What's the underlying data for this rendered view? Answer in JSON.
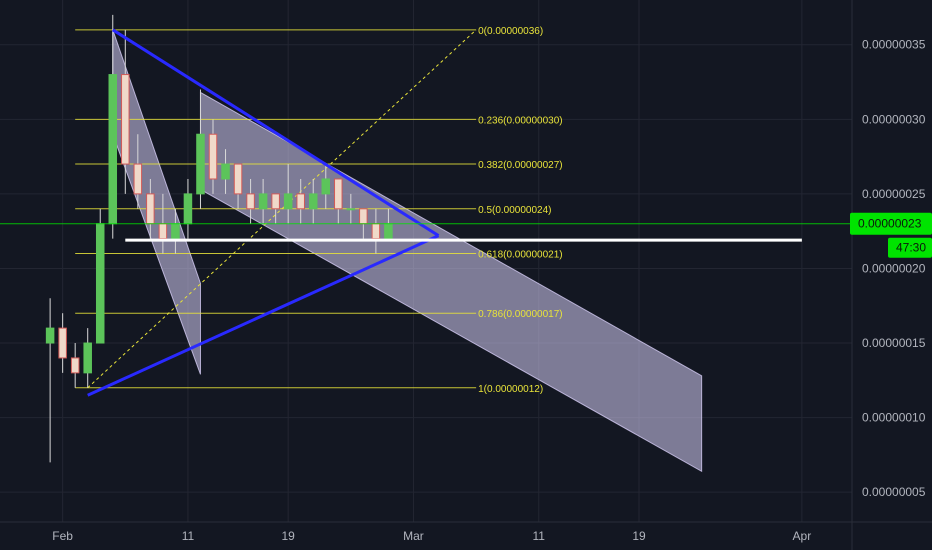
{
  "chart_data": {
    "type": "candlestick",
    "title": "",
    "xlabel": "",
    "ylabel": "",
    "x_range": [
      "2018-01-27",
      "2018-04-05"
    ],
    "ylim": [
      3e-08,
      3.8e-07
    ],
    "grid": true,
    "x_ticks": [
      {
        "date": "2018-02-01",
        "label": "Feb"
      },
      {
        "date": "2018-02-11",
        "label": "11"
      },
      {
        "date": "2018-02-19",
        "label": "19"
      },
      {
        "date": "2018-03-01",
        "label": "Mar"
      },
      {
        "date": "2018-03-11",
        "label": "11"
      },
      {
        "date": "2018-03-19",
        "label": "19"
      },
      {
        "date": "2018-04-01",
        "label": "Apr"
      }
    ],
    "y_ticks": [
      {
        "value": 3.5e-07,
        "label": "0.00000035"
      },
      {
        "value": 3e-07,
        "label": "0.00000030"
      },
      {
        "value": 2.5e-07,
        "label": "0.00000025"
      },
      {
        "value": 2e-07,
        "label": "0.00000020"
      },
      {
        "value": 1.5e-07,
        "label": "0.00000015"
      },
      {
        "value": 1e-07,
        "label": "0.00000010"
      },
      {
        "value": 5e-08,
        "label": "0.00000005"
      }
    ],
    "current_price": {
      "value": 2.3e-07,
      "label": "0.00000023",
      "countdown": "47:30",
      "color": "#00e400"
    },
    "fibonacci": {
      "start_date": "2018-02-02",
      "end_date": "2018-03-06",
      "color": "#e8e33a",
      "levels": [
        {
          "ratio": "0",
          "value": 3.6e-07,
          "label": "0(0.00000036)"
        },
        {
          "ratio": "0.236",
          "value": 3e-07,
          "label": "0.236(0.00000030)"
        },
        {
          "ratio": "0.382",
          "value": 2.7e-07,
          "label": "0.382(0.00000027)"
        },
        {
          "ratio": "0.5",
          "value": 2.4e-07,
          "label": "0.5(0.00000024)"
        },
        {
          "ratio": "0.618",
          "value": 2.1e-07,
          "label": "0.618(0.00000021)"
        },
        {
          "ratio": "0.786",
          "value": 1.7e-07,
          "label": "0.786(0.00000017)"
        },
        {
          "ratio": "1",
          "value": 1.2e-07,
          "label": "1(0.00000012)"
        }
      ],
      "diagonal": {
        "from_date": "2018-02-03",
        "from_value": 1.2e-07,
        "to_date": "2018-03-06",
        "to_value": 3.6e-07
      }
    },
    "triangle": {
      "color": "#2929ff",
      "upper": {
        "from_date": "2018-02-05",
        "from_value": 3.6e-07,
        "to_date": "2018-03-03",
        "to_value": 2.22e-07
      },
      "lower": {
        "from_date": "2018-02-03",
        "from_value": 1.15e-07,
        "to_date": "2018-03-03",
        "to_value": 2.22e-07
      }
    },
    "support_line": {
      "from_date": "2018-02-06",
      "to_date": "2018-04-01",
      "value": 2.19e-07,
      "color": "#ffffff"
    },
    "channels": [
      {
        "color": "#d6cdf5",
        "points": [
          [
            "2018-02-05",
            3.6e-07
          ],
          [
            "2018-02-12",
            1.9e-07
          ],
          [
            "2018-02-12",
            1.29e-07
          ],
          [
            "2018-02-05",
            2.9e-07
          ]
        ]
      },
      {
        "color": "#d6cdf5",
        "points": [
          [
            "2018-02-12",
            3.18e-07
          ],
          [
            "2018-03-24",
            1.28e-07
          ],
          [
            "2018-03-24",
            6.4e-08
          ],
          [
            "2018-02-12",
            2.53e-07
          ]
        ]
      }
    ],
    "candles": [
      {
        "date": "2018-01-31",
        "open": 1.5e-07,
        "high": 1.8e-07,
        "low": 7e-08,
        "close": 1.6e-07
      },
      {
        "date": "2018-02-01",
        "open": 1.6e-07,
        "high": 1.7e-07,
        "low": 1.3e-07,
        "close": 1.4e-07
      },
      {
        "date": "2018-02-02",
        "open": 1.4e-07,
        "high": 1.5e-07,
        "low": 1.2e-07,
        "close": 1.3e-07
      },
      {
        "date": "2018-02-03",
        "open": 1.3e-07,
        "high": 1.6e-07,
        "low": 1.2e-07,
        "close": 1.5e-07
      },
      {
        "date": "2018-02-04",
        "open": 1.5e-07,
        "high": 2.4e-07,
        "low": 1.5e-07,
        "close": 2.3e-07
      },
      {
        "date": "2018-02-05",
        "open": 2.3e-07,
        "high": 3.7e-07,
        "low": 2.2e-07,
        "close": 3.3e-07
      },
      {
        "date": "2018-02-06",
        "open": 3.3e-07,
        "high": 3.6e-07,
        "low": 2.5e-07,
        "close": 2.7e-07
      },
      {
        "date": "2018-02-07",
        "open": 2.7e-07,
        "high": 2.9e-07,
        "low": 2.4e-07,
        "close": 2.5e-07
      },
      {
        "date": "2018-02-08",
        "open": 2.5e-07,
        "high": 2.6e-07,
        "low": 2.2e-07,
        "close": 2.3e-07
      },
      {
        "date": "2018-02-09",
        "open": 2.3e-07,
        "high": 2.5e-07,
        "low": 2.1e-07,
        "close": 2.2e-07
      },
      {
        "date": "2018-02-10",
        "open": 2.2e-07,
        "high": 2.4e-07,
        "low": 2.1e-07,
        "close": 2.3e-07
      },
      {
        "date": "2018-02-11",
        "open": 2.3e-07,
        "high": 2.6e-07,
        "low": 2.2e-07,
        "close": 2.5e-07
      },
      {
        "date": "2018-02-12",
        "open": 2.5e-07,
        "high": 3.2e-07,
        "low": 2.4e-07,
        "close": 2.9e-07
      },
      {
        "date": "2018-02-13",
        "open": 2.9e-07,
        "high": 3e-07,
        "low": 2.5e-07,
        "close": 2.6e-07
      },
      {
        "date": "2018-02-14",
        "open": 2.6e-07,
        "high": 2.8e-07,
        "low": 2.5e-07,
        "close": 2.7e-07
      },
      {
        "date": "2018-02-15",
        "open": 2.7e-07,
        "high": 2.7e-07,
        "low": 2.4e-07,
        "close": 2.5e-07
      },
      {
        "date": "2018-02-16",
        "open": 2.5e-07,
        "high": 2.6e-07,
        "low": 2.3e-07,
        "close": 2.4e-07
      },
      {
        "date": "2018-02-17",
        "open": 2.4e-07,
        "high": 2.6e-07,
        "low": 2.3e-07,
        "close": 2.5e-07
      },
      {
        "date": "2018-02-18",
        "open": 2.5e-07,
        "high": 2.5e-07,
        "low": 2.3e-07,
        "close": 2.4e-07
      },
      {
        "date": "2018-02-19",
        "open": 2.4e-07,
        "high": 2.7e-07,
        "low": 2.3e-07,
        "close": 2.5e-07
      },
      {
        "date": "2018-02-20",
        "open": 2.5e-07,
        "high": 2.6e-07,
        "low": 2.3e-07,
        "close": 2.4e-07
      },
      {
        "date": "2018-02-21",
        "open": 2.4e-07,
        "high": 2.6e-07,
        "low": 2.3e-07,
        "close": 2.5e-07
      },
      {
        "date": "2018-02-22",
        "open": 2.5e-07,
        "high": 2.7e-07,
        "low": 2.4e-07,
        "close": 2.6e-07
      },
      {
        "date": "2018-02-23",
        "open": 2.6e-07,
        "high": 2.6e-07,
        "low": 2.3e-07,
        "close": 2.4e-07
      },
      {
        "date": "2018-02-24",
        "open": 2.4e-07,
        "high": 2.5e-07,
        "low": 2.3e-07,
        "close": 2.4e-07
      },
      {
        "date": "2018-02-25",
        "open": 2.4e-07,
        "high": 2.4e-07,
        "low": 2.2e-07,
        "close": 2.3e-07
      },
      {
        "date": "2018-02-26",
        "open": 2.3e-07,
        "high": 2.4e-07,
        "low": 2.1e-07,
        "close": 2.2e-07
      },
      {
        "date": "2018-02-27",
        "open": 2.2e-07,
        "high": 2.4e-07,
        "low": 2.2e-07,
        "close": 2.3e-07
      }
    ]
  }
}
